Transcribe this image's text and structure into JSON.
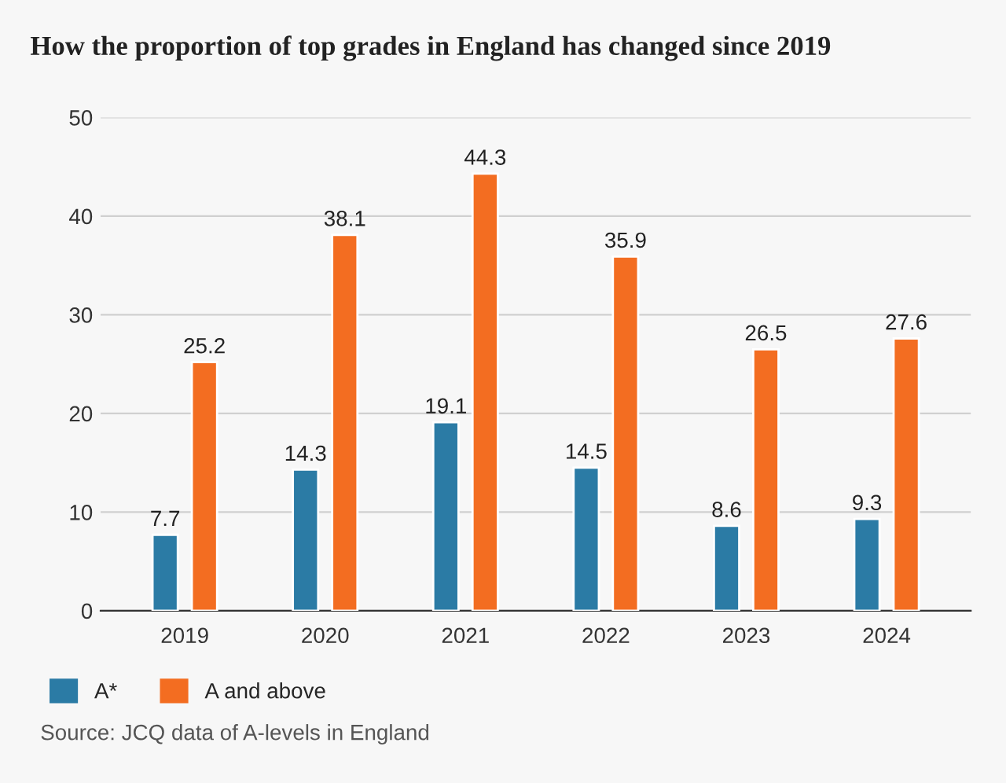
{
  "chart_data": {
    "type": "bar",
    "title": "How the proportion of top grades in England has changed since 2019",
    "categories": [
      "2019",
      "2020",
      "2021",
      "2022",
      "2023",
      "2024"
    ],
    "series": [
      {
        "name": "A*",
        "color": "#2b7ba5",
        "values": [
          7.7,
          14.3,
          19.1,
          14.5,
          8.6,
          9.3
        ]
      },
      {
        "name": "A and above",
        "color": "#f36d21",
        "values": [
          25.2,
          38.1,
          44.3,
          35.9,
          26.5,
          27.6
        ]
      }
    ],
    "ylim": [
      0,
      50
    ],
    "yticks": [
      0,
      10,
      20,
      30,
      40,
      50
    ],
    "grid": "y",
    "legend": "bottom left",
    "data_labels": true,
    "annotations": [
      "Source: JCQ data of A-levels in England"
    ]
  }
}
